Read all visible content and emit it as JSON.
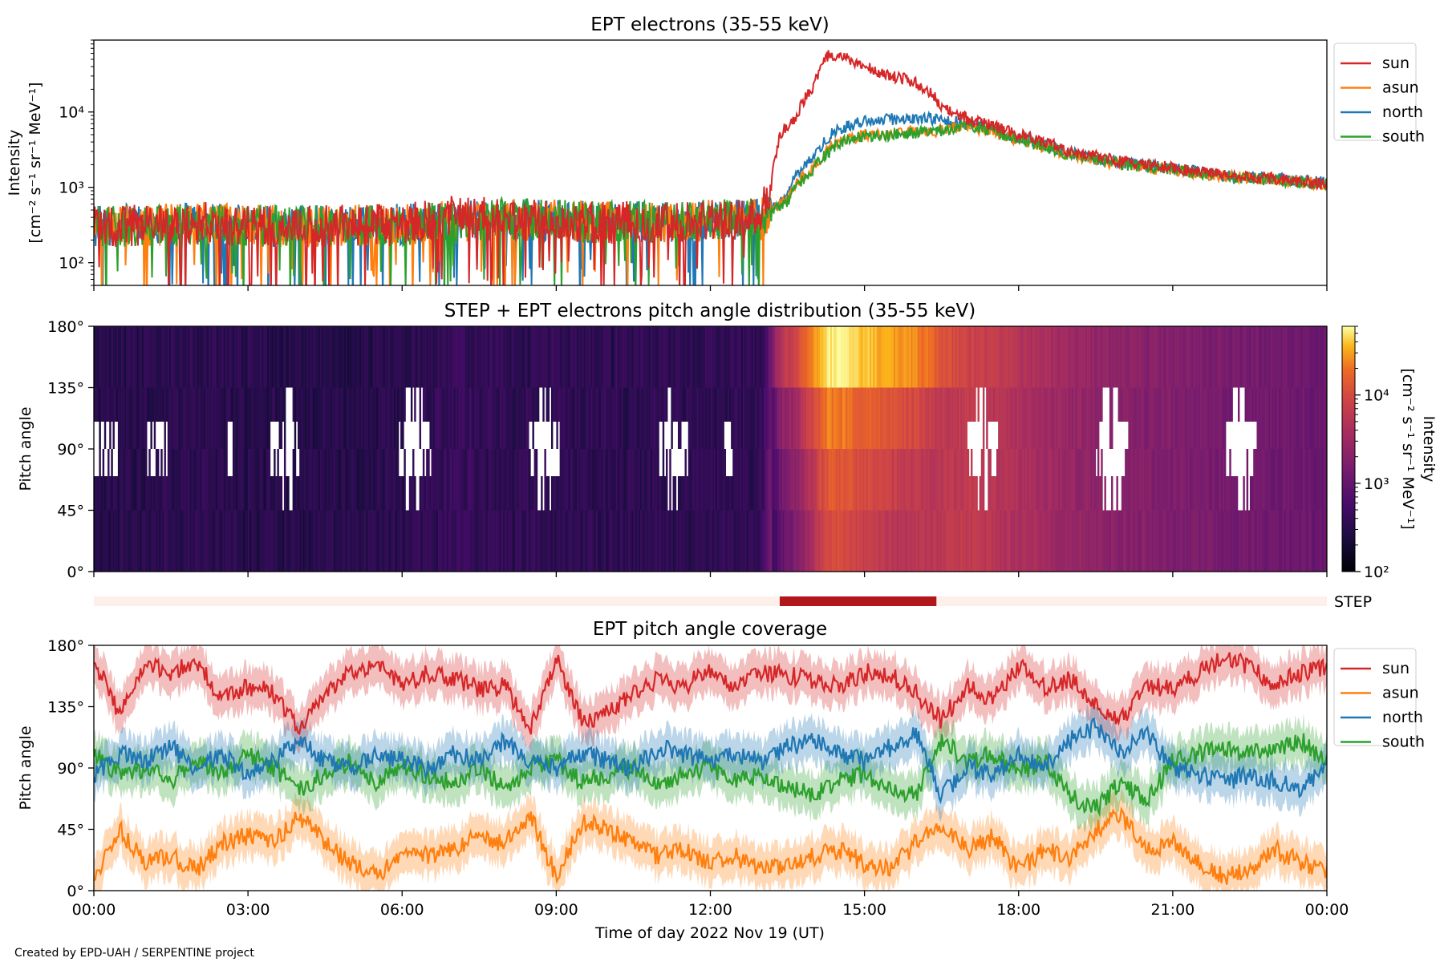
{
  "chart_data": [
    {
      "type": "line",
      "title": "EPT electrons (35-55 keV)",
      "ylabel": [
        "Intensity",
        "[cm⁻² s⁻¹ sr⁻¹ MeV⁻¹]"
      ],
      "yscale": "log",
      "ylim": [
        50,
        90000
      ],
      "xlim_hours": [
        0,
        24
      ],
      "yticks": [
        {
          "value": 100,
          "label": "10²"
        },
        {
          "value": 1000,
          "label": "10³"
        },
        {
          "value": 10000,
          "label": "10⁴"
        }
      ],
      "legend": "outside-right",
      "series": [
        {
          "name": "sun",
          "color": "#d62728",
          "x": [
            0,
            1,
            2,
            3,
            4,
            5,
            6,
            7,
            8,
            9,
            10,
            11,
            12,
            13,
            13.2,
            13.4,
            13.7,
            14,
            14.3,
            14.6,
            15,
            15.5,
            16,
            16.5,
            17,
            18,
            19,
            20,
            21,
            22,
            23,
            24
          ],
          "y": [
            300,
            320,
            340,
            310,
            300,
            310,
            320,
            420,
            380,
            360,
            340,
            360,
            360,
            380,
            1200,
            5500,
            9000,
            22000,
            56000,
            52000,
            40000,
            30000,
            25000,
            12000,
            8000,
            5000,
            3000,
            2200,
            1800,
            1500,
            1300,
            1100
          ]
        },
        {
          "name": "asun",
          "color": "#ff7f0e",
          "x": [
            0,
            2,
            4,
            6,
            8,
            10,
            12,
            13,
            13.5,
            14,
            14.5,
            15,
            15.5,
            16,
            16.4,
            17,
            18,
            19,
            20,
            21,
            22,
            23,
            24
          ],
          "y": [
            300,
            330,
            300,
            320,
            380,
            340,
            360,
            380,
            700,
            1800,
            4000,
            5000,
            5200,
            5600,
            5600,
            6500,
            4200,
            2600,
            2000,
            1700,
            1400,
            1250,
            1100
          ]
        },
        {
          "name": "north",
          "color": "#1f77b4",
          "x": [
            0,
            2,
            4,
            6,
            8,
            10,
            12,
            13,
            13.5,
            14,
            14.5,
            15,
            15.5,
            16,
            16.4,
            17,
            18,
            19,
            20,
            21,
            22,
            23,
            24
          ],
          "y": [
            310,
            330,
            300,
            320,
            380,
            340,
            360,
            380,
            800,
            2500,
            6000,
            7500,
            8000,
            8500,
            8000,
            7000,
            4500,
            2800,
            2100,
            1750,
            1450,
            1300,
            1150
          ]
        },
        {
          "name": "south",
          "color": "#2ca02c",
          "x": [
            0,
            2,
            4,
            6,
            8,
            10,
            12,
            13,
            13.5,
            14,
            14.5,
            15,
            15.5,
            16,
            16.4,
            17,
            18,
            19,
            20,
            21,
            22,
            23,
            24
          ],
          "y": [
            300,
            320,
            300,
            320,
            390,
            340,
            360,
            380,
            650,
            1700,
            3800,
            4800,
            5000,
            5300,
            5500,
            6800,
            4300,
            2700,
            2050,
            1700,
            1400,
            1250,
            1100
          ]
        }
      ]
    },
    {
      "type": "heatmap",
      "title": "STEP + EPT electrons pitch angle distribution (35-55 keV)",
      "ylabel": "Pitch angle",
      "ylim": [
        0,
        180
      ],
      "xlim_hours": [
        0,
        24
      ],
      "yticks": [
        "0°",
        "45°",
        "90°",
        "135°",
        "180°"
      ],
      "colorscale": "inferno",
      "colorbar": {
        "label": [
          "Intensity",
          "[cm⁻² s⁻¹ sr⁻¹ MeV⁻¹]"
        ],
        "range": [
          100,
          60000
        ],
        "ticks": [
          {
            "value": 100,
            "label": "10²"
          },
          {
            "value": 1000,
            "label": "10³"
          },
          {
            "value": 10000,
            "label": "10⁴"
          }
        ]
      }
    },
    {
      "type": "bar",
      "label": "STEP",
      "step_interval_hours": [
        13.35,
        16.4
      ],
      "colors": {
        "off": "#fdefe9",
        "on": "#b2181b"
      }
    },
    {
      "type": "line",
      "title": "EPT pitch angle coverage",
      "ylabel": "Pitch angle",
      "xlabel": "Time of day 2022 Nov 19 (UT)",
      "ylim": [
        0,
        180
      ],
      "xlim_hours": [
        0,
        24
      ],
      "yticks": [
        "0°",
        "45°",
        "90°",
        "135°",
        "180°"
      ],
      "xticks": [
        "00:00",
        "03:00",
        "06:00",
        "09:00",
        "12:00",
        "15:00",
        "18:00",
        "21:00",
        "00:00"
      ],
      "legend": "outside-right",
      "series": [
        {
          "name": "sun",
          "color": "#d62728",
          "x": [
            0,
            0.5,
            1,
            1.5,
            2,
            2.5,
            3,
            3.5,
            4,
            4.5,
            5,
            5.5,
            6,
            6.5,
            7,
            7.5,
            8,
            8.5,
            9,
            9.5,
            10,
            10.5,
            11,
            11.5,
            12,
            12.5,
            13,
            13.5,
            14,
            14.5,
            15,
            15.5,
            16,
            16.5,
            17,
            17.5,
            18,
            18.5,
            19,
            19.5,
            20,
            20.5,
            21,
            21.5,
            22,
            22.5,
            23,
            23.5,
            24
          ],
          "y": [
            170,
            130,
            165,
            160,
            168,
            140,
            150,
            145,
            118,
            145,
            160,
            168,
            150,
            160,
            155,
            148,
            150,
            120,
            170,
            125,
            130,
            145,
            155,
            150,
            162,
            150,
            160,
            158,
            155,
            150,
            160,
            158,
            145,
            125,
            150,
            140,
            165,
            150,
            155,
            138,
            125,
            150,
            148,
            160,
            170,
            165,
            150,
            160,
            165
          ]
        },
        {
          "name": "asun",
          "color": "#ff7f0e",
          "x": [
            0,
            0.5,
            1,
            1.5,
            2,
            2.5,
            3,
            3.5,
            4,
            4.5,
            5,
            5.5,
            6,
            6.5,
            7,
            7.5,
            8,
            8.5,
            9,
            9.5,
            10,
            10.5,
            11,
            11.5,
            12,
            12.5,
            13,
            13.5,
            14,
            14.5,
            15,
            15.5,
            16,
            16.5,
            17,
            17.5,
            18,
            18.5,
            19,
            19.5,
            20,
            20.5,
            21,
            21.5,
            22,
            22.5,
            23,
            23.5,
            24
          ],
          "y": [
            10,
            45,
            20,
            25,
            15,
            35,
            40,
            35,
            55,
            35,
            20,
            10,
            30,
            25,
            30,
            40,
            35,
            55,
            10,
            50,
            45,
            35,
            25,
            30,
            20,
            25,
            15,
            20,
            25,
            30,
            20,
            15,
            35,
            50,
            30,
            40,
            15,
            30,
            25,
            45,
            55,
            30,
            35,
            20,
            10,
            15,
            30,
            20,
            15
          ]
        },
        {
          "name": "north",
          "color": "#1f77b4",
          "x": [
            0,
            0.5,
            1,
            1.5,
            2,
            2.5,
            3,
            3.5,
            4,
            4.5,
            5,
            5.5,
            6,
            6.5,
            7,
            7.5,
            8,
            8.5,
            9,
            9.5,
            10,
            10.5,
            11,
            11.5,
            12,
            12.5,
            13,
            13.5,
            14,
            14.5,
            15,
            15.5,
            16,
            16.5,
            17,
            17.5,
            18,
            18.5,
            19,
            19.5,
            20,
            20.5,
            21,
            21.5,
            22,
            22.5,
            23,
            23.5,
            24
          ],
          "y": [
            85,
            100,
            95,
            105,
            90,
            100,
            85,
            95,
            110,
            95,
            90,
            100,
            95,
            90,
            100,
            95,
            110,
            95,
            90,
            100,
            95,
            90,
            105,
            100,
            95,
            100,
            95,
            105,
            110,
            100,
            95,
            105,
            115,
            70,
            90,
            85,
            100,
            90,
            110,
            120,
            100,
            115,
            90,
            85,
            80,
            85,
            80,
            75,
            90
          ]
        },
        {
          "name": "south",
          "color": "#2ca02c",
          "x": [
            0,
            0.5,
            1,
            1.5,
            2,
            2.5,
            3,
            3.5,
            4,
            4.5,
            5,
            5.5,
            6,
            6.5,
            7,
            7.5,
            8,
            8.5,
            9,
            9.5,
            10,
            10.5,
            11,
            11.5,
            12,
            12.5,
            13,
            13.5,
            14,
            14.5,
            15,
            15.5,
            16,
            16.5,
            17,
            17.5,
            18,
            18.5,
            19,
            19.5,
            20,
            20.5,
            21,
            21.5,
            22,
            22.5,
            23,
            23.5,
            24
          ],
          "y": [
            100,
            85,
            90,
            80,
            95,
            85,
            100,
            90,
            75,
            85,
            95,
            80,
            90,
            85,
            80,
            90,
            75,
            90,
            95,
            80,
            85,
            90,
            80,
            85,
            90,
            80,
            85,
            75,
            70,
            80,
            85,
            75,
            70,
            110,
            95,
            100,
            85,
            95,
            70,
            60,
            80,
            65,
            95,
            100,
            105,
            100,
            105,
            110,
            95
          ]
        }
      ]
    }
  ],
  "footer": "Created by EPD-UAH / SERPENTINE project"
}
